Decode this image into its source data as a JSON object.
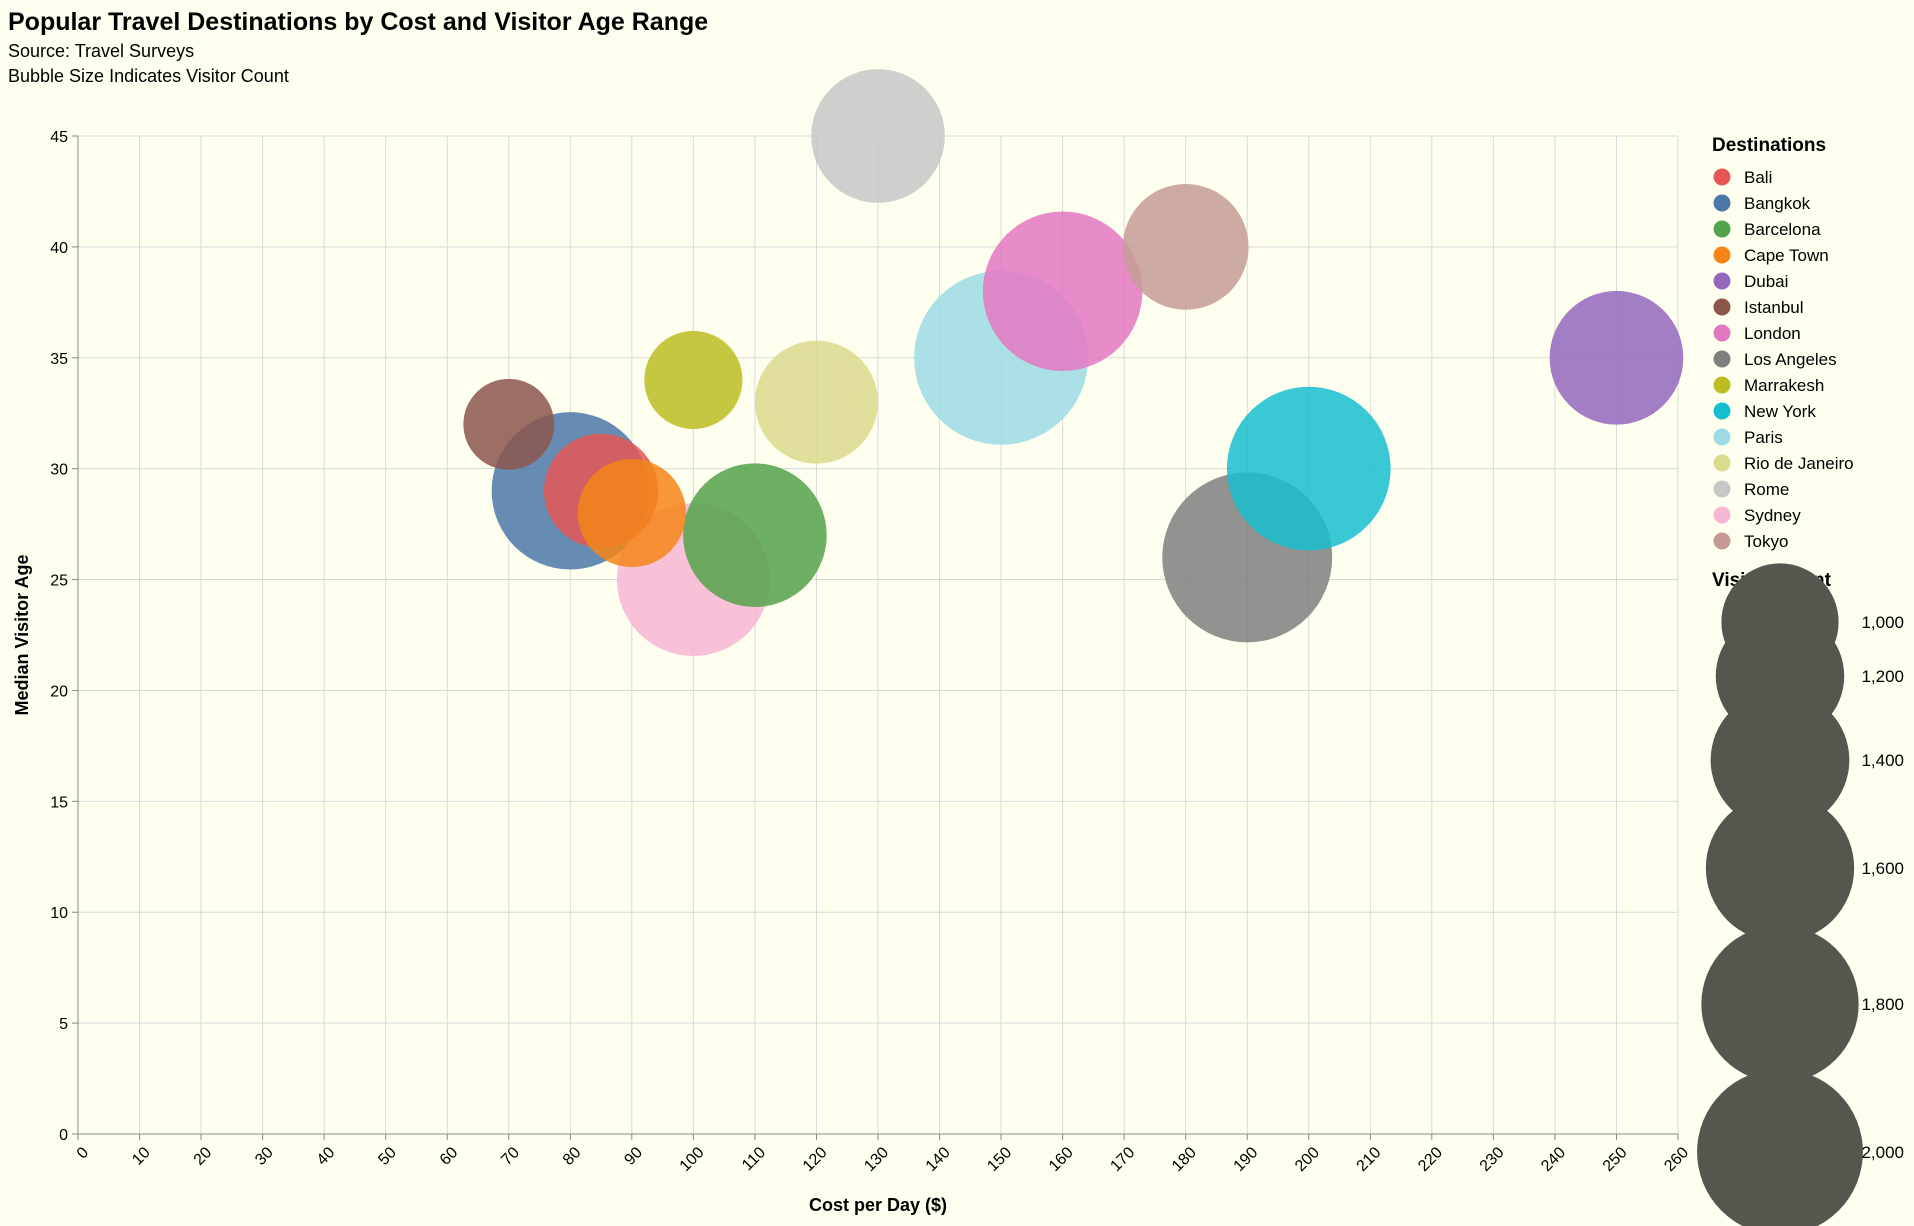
{
  "chart_data": {
    "type": "scatter",
    "title": "Popular Travel Destinations by Cost and Visitor Age Range",
    "subtitle": [
      "Source: Travel Surveys",
      "Bubble Size Indicates Visitor Count"
    ],
    "xlabel": "Cost per Day ($)",
    "ylabel": "Median Visitor Age",
    "xlim": [
      0,
      260
    ],
    "ylim": [
      0,
      45
    ],
    "x_ticks": [
      0,
      10,
      20,
      30,
      40,
      50,
      60,
      70,
      80,
      90,
      100,
      110,
      120,
      130,
      140,
      150,
      160,
      170,
      180,
      190,
      200,
      210,
      220,
      230,
      240,
      250,
      260
    ],
    "y_ticks": [
      0,
      5,
      10,
      15,
      20,
      25,
      30,
      35,
      40,
      45
    ],
    "grid": true,
    "color_legend": {
      "title": "Destinations",
      "placement": "right"
    },
    "size_legend": {
      "title": "Visitor Count",
      "values": [
        1000,
        1200,
        1400,
        1600,
        1800,
        2000
      ],
      "labels": [
        "1,000",
        "1,200",
        "1,400",
        "1,600",
        "1,800",
        "2,000"
      ],
      "color": "#55574f"
    },
    "series": [
      {
        "name": "Bali",
        "color": "#e45756",
        "x": 85,
        "y": 29,
        "size": 950
      },
      {
        "name": "Bangkok",
        "color": "#4c78a8",
        "x": 80,
        "y": 29,
        "size": 1800
      },
      {
        "name": "Barcelona",
        "color": "#54a24b",
        "x": 110,
        "y": 27,
        "size": 1500
      },
      {
        "name": "Cape Town",
        "color": "#f58518",
        "x": 90,
        "y": 28,
        "size": 850
      },
      {
        "name": "Dubai",
        "color": "#9467bd",
        "x": 250,
        "y": 35,
        "size": 1300
      },
      {
        "name": "Istanbul",
        "color": "#8c564b",
        "x": 70,
        "y": 32,
        "size": 600
      },
      {
        "name": "London",
        "color": "#e377c2",
        "x": 160,
        "y": 38,
        "size": 1850
      },
      {
        "name": "Los Angeles",
        "color": "#7f7f7f",
        "x": 190,
        "y": 26,
        "size": 2100
      },
      {
        "name": "Marrakesh",
        "color": "#bcbd22",
        "x": 100,
        "y": 34,
        "size": 700
      },
      {
        "name": "New York",
        "color": "#17becf",
        "x": 200,
        "y": 30,
        "size": 1950
      },
      {
        "name": "Paris",
        "color": "#9edae5",
        "x": 150,
        "y": 35,
        "size": 2200
      },
      {
        "name": "Rio de Janeiro",
        "color": "#dbdb8d",
        "x": 120,
        "y": 33,
        "size": 1100
      },
      {
        "name": "Rome",
        "color": "#c7c7c7",
        "x": 130,
        "y": 45,
        "size": 1300
      },
      {
        "name": "Sydney",
        "color": "#f7b6d2",
        "x": 100,
        "y": 25,
        "size": 1700
      },
      {
        "name": "Tokyo",
        "color": "#c49c94",
        "x": 180,
        "y": 40,
        "size": 1150
      }
    ]
  }
}
